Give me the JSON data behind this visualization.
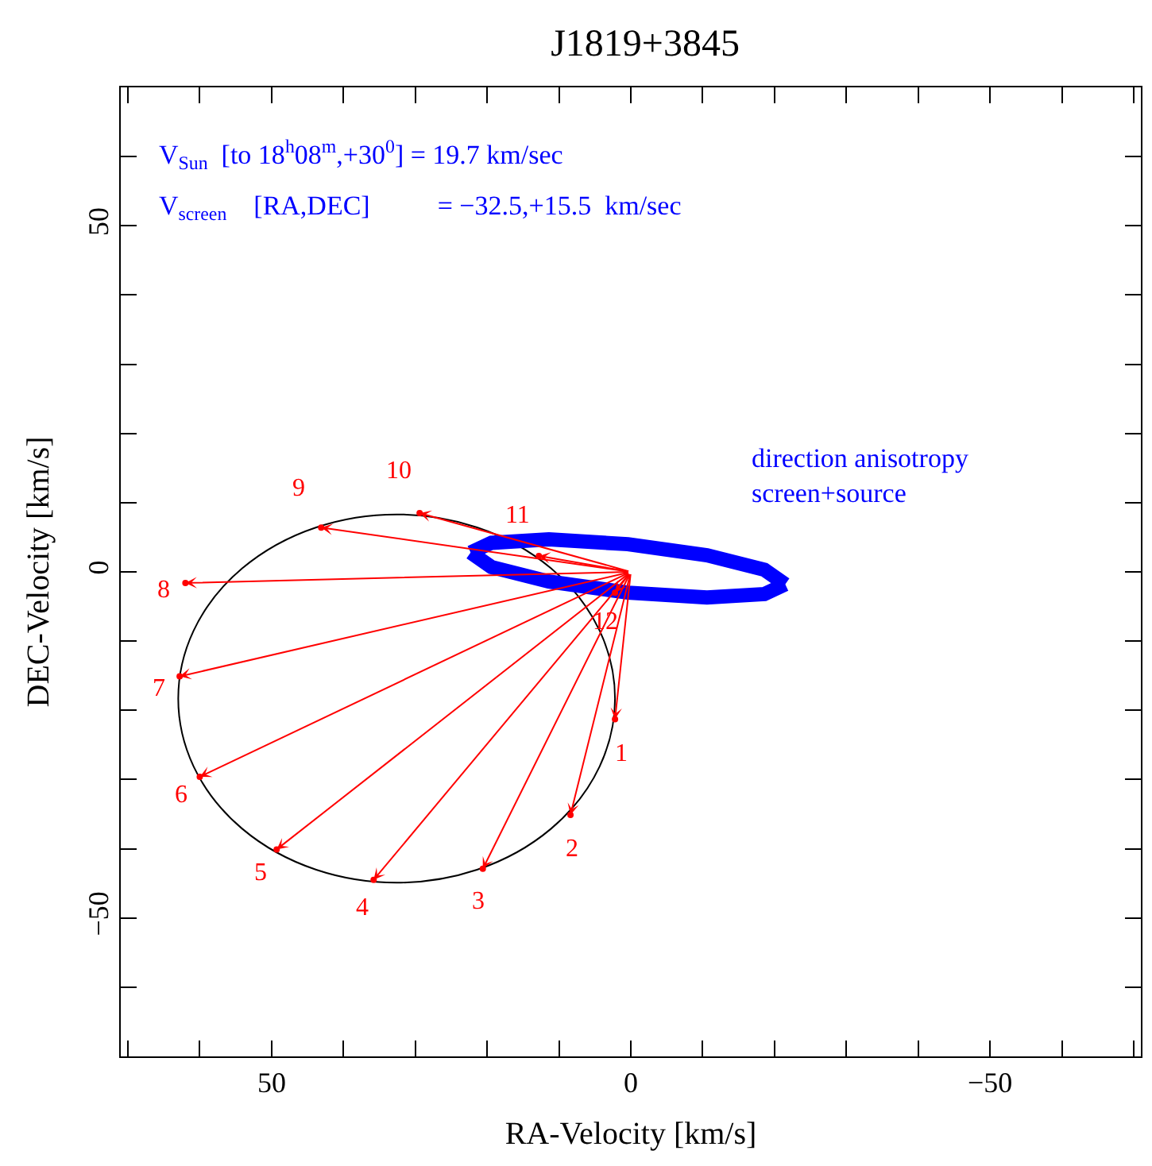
{
  "chart_data": {
    "type": "scatter",
    "title": "J1819+3845",
    "xlabel": "RA-Velocity [km/s]",
    "ylabel": "DEC-Velocity [km/s]",
    "xlim": [
      71,
      -71
    ],
    "ylim": [
      -70,
      70
    ],
    "xticks": [
      {
        "value": 70,
        "label": null
      },
      {
        "value": 60,
        "label": null
      },
      50,
      {
        "value": 40,
        "label": null
      },
      {
        "value": 30,
        "label": null
      },
      {
        "value": 20,
        "label": null
      },
      {
        "value": 10,
        "label": null
      },
      0,
      {
        "value": -10,
        "label": null
      },
      {
        "value": -20,
        "label": null
      },
      {
        "value": -30,
        "label": null
      },
      {
        "value": -40,
        "label": null
      },
      -50,
      {
        "value": -60,
        "label": null
      },
      {
        "value": -70,
        "label": null
      }
    ],
    "yticks": [
      {
        "value": 60,
        "label": null
      },
      50,
      {
        "value": 40,
        "label": null
      },
      {
        "value": 30,
        "label": null
      },
      {
        "value": 20,
        "label": null
      },
      {
        "value": 10,
        "label": null
      },
      0,
      {
        "value": -10,
        "label": null
      },
      {
        "value": -20,
        "label": null
      },
      {
        "value": -30,
        "label": null
      },
      {
        "value": -40,
        "label": null
      },
      -50,
      {
        "value": -60,
        "label": null
      }
    ],
    "grid": false,
    "series": [
      {
        "type": "line",
        "color": "#0000ff",
        "marker": "none",
        "x": [
          22.3,
          19.4,
          11.4,
          0.4,
          -10.6,
          -18.6,
          -21.5
        ],
        "values": [
          2.8,
          4.2,
          4.7,
          4.0,
          2.4,
          0.3,
          -1.8
        ]
      },
      {
        "type": "line",
        "color": "#0000ff",
        "marker": "none",
        "x": [
          -21.5,
          -18.6,
          -10.6,
          0.4,
          11.4,
          19.4,
          22.3
        ],
        "values": [
          -1.8,
          -3.2,
          -3.7,
          -3.0,
          -1.4,
          0.7,
          2.8
        ]
      },
      {
        "color": "#ff0000",
        "marker": "circle",
        "x": [
          2.2,
          8.4,
          20.6,
          35.8,
          49.3,
          60.0,
          62.8,
          62.0,
          43.1,
          29.4,
          12.8,
          2.2
        ],
        "values": [
          -21.3,
          -35.1,
          -42.9,
          -44.5,
          -40.1,
          -29.6,
          -15.1,
          -1.6,
          6.4,
          8.5,
          2.3,
          -3.0
        ]
      }
    ],
    "annotations": [
      "1",
      "2",
      "3",
      "4",
      "5",
      "6",
      "7",
      "8",
      "9",
      "10",
      "11",
      "12",
      "V$_{Sun}$  [to 18$^{h}$08$^{m}$,+30$^{0}$] = 19.7 km/sec",
      "V$_{screen}$    [RA,DEC]          = −32.5,+15.5  km/sec",
      "direction anisotropy\nscreen+source"
    ]
  }
}
